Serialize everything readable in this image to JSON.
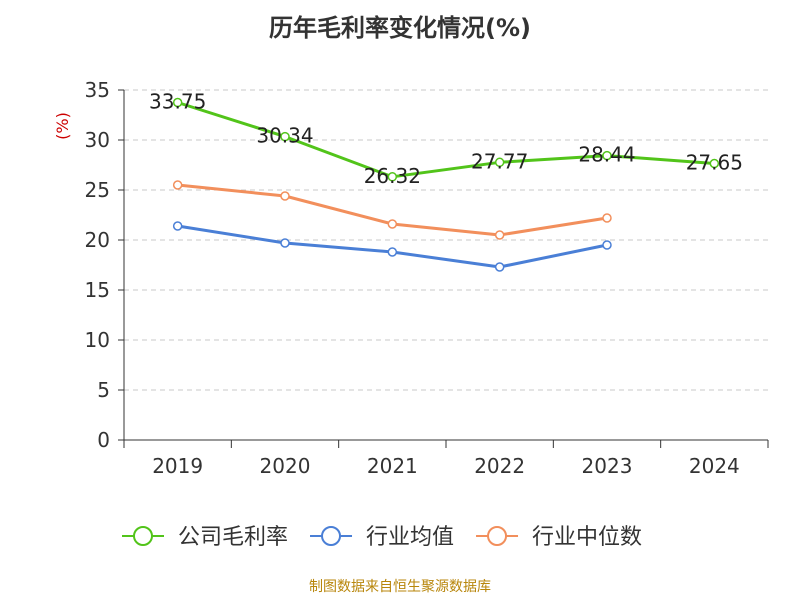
{
  "title": "历年毛利率变化情况(%)",
  "source": "制图数据来自恒生聚源数据库",
  "chart_data": {
    "type": "line",
    "title": "历年毛利率变化情况(%)",
    "ylabel": "(%)",
    "categories": [
      "2019",
      "2020",
      "2021",
      "2022",
      "2023",
      "2024"
    ],
    "yticks": [
      "0",
      "5",
      "10",
      "15",
      "20",
      "25",
      "30",
      "35"
    ],
    "ylim": [
      0,
      35
    ],
    "grid": "horizontal-dashed",
    "legend_position": "bottom",
    "series": [
      {
        "name": "公司毛利率",
        "color": "#52c41a",
        "values": [
          33.75,
          30.34,
          26.32,
          27.77,
          28.44,
          27.65
        ],
        "labels": [
          "33.75",
          "30.34",
          "26.32",
          "27.77",
          "28.44",
          "27.65"
        ]
      },
      {
        "name": "行业均值",
        "color": "#4a7fd6",
        "values": [
          21.4,
          19.7,
          18.8,
          17.3,
          19.5,
          null
        ]
      },
      {
        "name": "行业中位数",
        "color": "#f28f5c",
        "values": [
          25.5,
          24.4,
          21.6,
          20.5,
          22.2,
          null
        ]
      }
    ]
  }
}
